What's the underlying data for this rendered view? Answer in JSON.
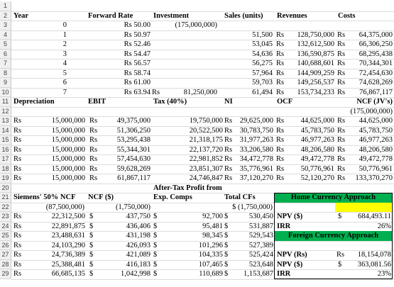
{
  "row_numbers": [
    "1",
    "2",
    "3",
    "4",
    "5",
    "6",
    "7",
    "8",
    "9",
    "10",
    "11",
    "12",
    "13",
    "14",
    "15",
    "16",
    "17",
    "18",
    "19",
    "20",
    "21",
    "22",
    "23",
    "24",
    "25",
    "26",
    "27",
    "28",
    "29"
  ],
  "headers": {
    "year": "Year",
    "forward_rate": "Forward Rate",
    "investment": "Investment",
    "sales_units": "Sales (units)",
    "revenues": "Revenues",
    "costs": "Costs",
    "depreciation": "Depreciation",
    "ebit": "EBIT",
    "tax": "Tax (40%)",
    "ni": "NI",
    "ocf": "OCF",
    "ncf_jv": "NCF (JV's)",
    "after_tax_profit": "After-Tax Profit from",
    "siemens_ncf": "Siemens' 50% NCF",
    "ncf_usd": "NCF ($)",
    "exp_comps": "Exp. Comps",
    "total_cfs": "Total CFs",
    "home_approach": "Home Currency Approach",
    "foreign_approach": "Foreign Currency Approach"
  },
  "rs": "Rs",
  "usd": "$",
  "years": [
    "0",
    "1",
    "2",
    "3",
    "4",
    "5",
    "6",
    "7"
  ],
  "forward_rates": [
    "Rs 50.00",
    "Rs 50.97",
    "Rs 52.46",
    "Rs 54.47",
    "Rs 56.57",
    "Rs 58.74",
    "Rs 61.00",
    "Rs 63.94"
  ],
  "investment_row3": "(175,000,000)",
  "investment_row10": "81,250,000",
  "sales_units": [
    "51,500",
    "53,045",
    "54,636",
    "56,275",
    "57,964",
    "59,703",
    "61,494"
  ],
  "revenues": [
    "128,750,000",
    "132,612,500",
    "136,590,875",
    "140,688,601",
    "144,909,259",
    "149,256,537",
    "153,734,233"
  ],
  "costs": [
    "64,375,000",
    "66,306,250",
    "68,295,438",
    "70,344,301",
    "72,454,630",
    "74,628,269",
    "76,867,117"
  ],
  "ncf_jv_year0": "(175,000,000)",
  "lower_rows": [
    {
      "dep": "15,000,000",
      "ebit": "49,375,000",
      "tax": "19,750,000",
      "ni": "29,625,000",
      "ocf": "44,625,000",
      "ncf": "44,625,000"
    },
    {
      "dep": "15,000,000",
      "ebit": "51,306,250",
      "tax": "20,522,500",
      "ni": "30,783,750",
      "ocf": "45,783,750",
      "ncf": "45,783,750"
    },
    {
      "dep": "15,000,000",
      "ebit": "53,295,438",
      "tax": "21,318,175",
      "ni": "31,977,263",
      "ocf": "46,977,263",
      "ncf": "46,977,263"
    },
    {
      "dep": "15,000,000",
      "ebit": "55,344,301",
      "tax": "22,137,720",
      "ni": "33,206,580",
      "ocf": "48,206,580",
      "ncf": "48,206,580"
    },
    {
      "dep": "15,000,000",
      "ebit": "57,454,630",
      "tax": "22,981,852",
      "ni": "34,472,778",
      "ocf": "49,472,778",
      "ncf": "49,472,778"
    },
    {
      "dep": "15,000,000",
      "ebit": "59,628,269",
      "tax": "23,851,307",
      "ni": "35,776,961",
      "ocf": "50,776,961",
      "ncf": "50,776,961"
    },
    {
      "dep": "15,000,000",
      "ebit": "61,867,117",
      "tax": "24,746,847",
      "ni": "37,120,270",
      "ocf": "52,120,270",
      "ncf": "133,370,270"
    }
  ],
  "siemens_year0": "(87,500,000)",
  "ncf_usd_year0": "(1,750,000)",
  "total_cf_year0": "$ (1,750,000)",
  "bottom_rows": [
    {
      "siemens": "22,312,500",
      "ncf_usd": "437,750",
      "exp": "92,700",
      "total": "530,450"
    },
    {
      "siemens": "22,891,875",
      "ncf_usd": "436,406",
      "exp": "95,481",
      "total": "531,887"
    },
    {
      "siemens": "23,488,631",
      "ncf_usd": "431,198",
      "exp": "98,345",
      "total": "529,543"
    },
    {
      "siemens": "24,103,290",
      "ncf_usd": "426,093",
      "exp": "101,296",
      "total": "527,389"
    },
    {
      "siemens": "24,736,389",
      "ncf_usd": "421,089",
      "exp": "104,335",
      "total": "525,424"
    },
    {
      "siemens": "25,388,481",
      "ncf_usd": "416,183",
      "exp": "107,465",
      "total": "523,648"
    },
    {
      "siemens": "66,685,135",
      "ncf_usd": "1,042,998",
      "exp": "110,689",
      "total": "1,153,687"
    }
  ],
  "results": {
    "npv_usd_label": "NPV ($)",
    "npv_usd_home": "684,493.11",
    "irr_label": "IRR",
    "irr_home": "26%",
    "npv_rs_label": "NPV (Rs)",
    "npv_rs_value": "18,154,078",
    "npv_usd_foreign": "363,081.56",
    "irr_foreign": "23%"
  },
  "colors": {
    "green": "#00b050",
    "yellow": "#ffff00"
  }
}
